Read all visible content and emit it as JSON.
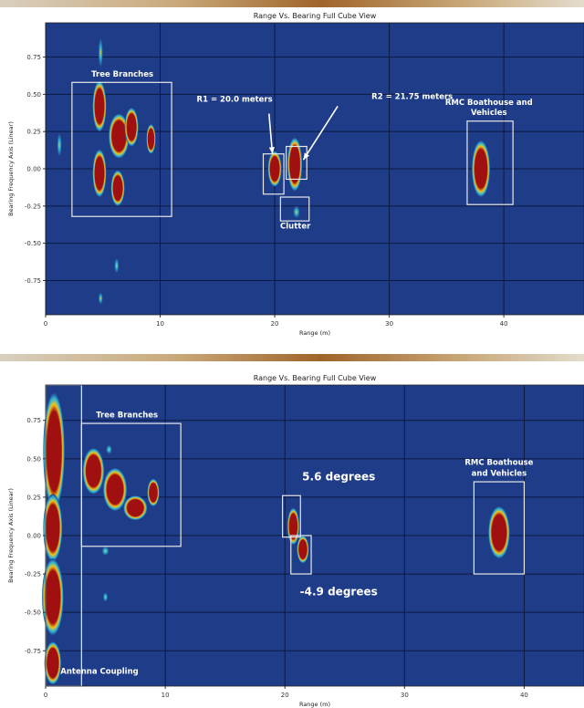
{
  "chart_data": [
    {
      "type": "heatmap",
      "title": "Range Vs. Bearing Full Cube View",
      "xlabel": "Range (m)",
      "ylabel": "Bearing Frequency Axis (Linear)",
      "xlim": [
        0,
        47
      ],
      "ylim": [
        -0.98,
        0.98
      ],
      "x_ticks": [
        0,
        10,
        20,
        30,
        40
      ],
      "y_ticks": [
        0.75,
        0.5,
        0.25,
        0.0,
        -0.25,
        -0.5,
        -0.75
      ],
      "y_tick_labels": [
        "0.75",
        "0.50",
        "0.25",
        "0.00",
        "-0.25",
        "-0.50",
        "-0.75"
      ],
      "grid": true,
      "colors": {
        "background": "#1f3c88",
        "hot": "#a01010",
        "mid": "#f2c21a",
        "cool": "#2fb8d8"
      },
      "detections": [
        {
          "x": 4.7,
          "y": 0.42,
          "rx": 0.6,
          "ry": 0.17
        },
        {
          "x": 4.7,
          "y": -0.03,
          "rx": 0.6,
          "ry": 0.16
        },
        {
          "x": 6.4,
          "y": 0.22,
          "rx": 0.9,
          "ry": 0.15
        },
        {
          "x": 7.5,
          "y": 0.28,
          "rx": 0.6,
          "ry": 0.13
        },
        {
          "x": 9.2,
          "y": 0.2,
          "rx": 0.4,
          "ry": 0.1
        },
        {
          "x": 6.3,
          "y": -0.13,
          "rx": 0.6,
          "ry": 0.12
        },
        {
          "x": 20.0,
          "y": 0.0,
          "rx": 0.6,
          "ry": 0.12
        },
        {
          "x": 21.75,
          "y": 0.03,
          "rx": 0.65,
          "ry": 0.18
        },
        {
          "x": 38.0,
          "y": 0.0,
          "rx": 0.8,
          "ry": 0.19
        }
      ],
      "weak_returns": [
        {
          "x": 4.8,
          "y": 0.78,
          "rx": 0.2,
          "ry": 0.1
        },
        {
          "x": 1.2,
          "y": 0.16,
          "rx": 0.2,
          "ry": 0.08
        },
        {
          "x": 6.2,
          "y": -0.65,
          "rx": 0.2,
          "ry": 0.05
        },
        {
          "x": 4.8,
          "y": -0.87,
          "rx": 0.2,
          "ry": 0.04
        },
        {
          "x": 21.9,
          "y": -0.29,
          "rx": 0.3,
          "ry": 0.04
        }
      ],
      "boxes": [
        {
          "x0": 2.3,
          "x1": 11.0,
          "y0": -0.32,
          "y1": 0.58
        },
        {
          "x0": 19.0,
          "x1": 20.8,
          "y0": -0.17,
          "y1": 0.1
        },
        {
          "x0": 21.0,
          "x1": 22.8,
          "y0": -0.07,
          "y1": 0.15
        },
        {
          "x0": 20.5,
          "x1": 23.0,
          "y0": -0.35,
          "y1": -0.19
        },
        {
          "x0": 36.8,
          "x1": 40.8,
          "y0": -0.24,
          "y1": 0.32
        }
      ],
      "annotations": [
        {
          "text": "Tree Branches",
          "x": 6.7,
          "y": 0.62
        },
        {
          "text": "R1 = 20.0 meters",
          "x": 16.5,
          "y": 0.45
        },
        {
          "text": "R2 = 21.75 meters",
          "x": 32.0,
          "y": 0.47
        },
        {
          "text": "RMC Boathouse and",
          "x": 38.7,
          "y": 0.43
        },
        {
          "text": "Vehicles",
          "x": 38.7,
          "y": 0.36
        },
        {
          "text": "Clutter",
          "x": 21.8,
          "y": -0.4
        }
      ],
      "arrows": [
        {
          "from": [
            19.5,
            0.37
          ],
          "to": [
            19.8,
            0.1
          ]
        },
        {
          "from": [
            25.5,
            0.42
          ],
          "to": [
            22.5,
            0.06
          ]
        }
      ]
    },
    {
      "type": "heatmap",
      "title": "Range Vs. Bearing Full Cube View",
      "xlabel": "Range (m)",
      "ylabel": "Bearing Frequency Axis (Linear)",
      "xlim": [
        0,
        45
      ],
      "ylim": [
        -0.98,
        0.98
      ],
      "x_ticks": [
        0,
        10,
        20,
        30,
        40
      ],
      "y_ticks": [
        0.75,
        0.5,
        0.25,
        0.0,
        -0.25,
        -0.5,
        -0.75
      ],
      "y_tick_labels": [
        "0.75",
        "0.50",
        "0.25",
        "0.00",
        "-0.25",
        "-0.50",
        "-0.75"
      ],
      "grid": true,
      "colors": {
        "background": "#1f3c88",
        "hot": "#a01010",
        "mid": "#f2c21a",
        "cool": "#2fb8d8"
      },
      "detections": [
        {
          "x": 0.7,
          "y": 0.55,
          "rx": 0.9,
          "ry": 0.38
        },
        {
          "x": 0.6,
          "y": 0.05,
          "rx": 0.8,
          "ry": 0.22
        },
        {
          "x": 0.6,
          "y": -0.4,
          "rx": 0.9,
          "ry": 0.25
        },
        {
          "x": 0.6,
          "y": -0.83,
          "rx": 0.7,
          "ry": 0.14
        },
        {
          "x": 4.0,
          "y": 0.42,
          "rx": 0.9,
          "ry": 0.15
        },
        {
          "x": 5.8,
          "y": 0.3,
          "rx": 1.0,
          "ry": 0.14
        },
        {
          "x": 7.5,
          "y": 0.18,
          "rx": 1.0,
          "ry": 0.08
        },
        {
          "x": 9.0,
          "y": 0.28,
          "rx": 0.5,
          "ry": 0.09
        },
        {
          "x": 20.7,
          "y": 0.06,
          "rx": 0.5,
          "ry": 0.12
        },
        {
          "x": 21.5,
          "y": -0.09,
          "rx": 0.5,
          "ry": 0.09
        },
        {
          "x": 37.9,
          "y": 0.02,
          "rx": 0.9,
          "ry": 0.17
        }
      ],
      "weak_returns": [
        {
          "x": 5.0,
          "y": -0.1,
          "rx": 0.3,
          "ry": 0.03
        },
        {
          "x": 5.0,
          "y": -0.4,
          "rx": 0.2,
          "ry": 0.03
        },
        {
          "x": 5.3,
          "y": 0.56,
          "rx": 0.25,
          "ry": 0.03
        }
      ],
      "boxes": [
        {
          "x0": 0.0,
          "x1": 3.0,
          "y0": -0.98,
          "y1": 0.98
        },
        {
          "x0": 3.0,
          "x1": 11.3,
          "y0": -0.07,
          "y1": 0.73
        },
        {
          "x0": 19.8,
          "x1": 21.3,
          "y0": -0.01,
          "y1": 0.26
        },
        {
          "x0": 20.5,
          "x1": 22.2,
          "y0": -0.25,
          "y1": 0.0
        },
        {
          "x0": 35.8,
          "x1": 40.0,
          "y0": -0.25,
          "y1": 0.35
        }
      ],
      "annotations": [
        {
          "text": "Tree Branches",
          "x": 6.8,
          "y": 0.77
        },
        {
          "text": "5.6 degrees",
          "x": 24.5,
          "y": 0.36
        },
        {
          "text": "-4.9 degrees",
          "x": 24.5,
          "y": -0.39
        },
        {
          "text": "RMC Boathouse",
          "x": 37.9,
          "y": 0.46
        },
        {
          "text": "and Vehicles",
          "x": 37.9,
          "y": 0.39
        },
        {
          "text": "Antenna Coupling",
          "x": 4.5,
          "y": -0.9
        }
      ],
      "arrows": []
    }
  ]
}
